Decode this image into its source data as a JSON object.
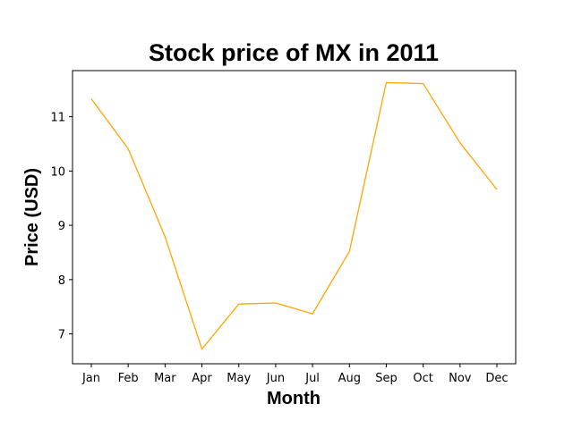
{
  "chart_data": {
    "type": "line",
    "title": "Stock price of MX in 2011",
    "xlabel": "Month",
    "ylabel": "Price (USD)",
    "categories": [
      "Jan",
      "Feb",
      "Mar",
      "Apr",
      "May",
      "Jun",
      "Jul",
      "Aug",
      "Sep",
      "Oct",
      "Nov",
      "Dec"
    ],
    "series": [
      {
        "values": [
          11.33,
          10.41,
          8.79,
          6.72,
          7.55,
          7.57,
          7.37,
          8.52,
          11.63,
          11.61,
          10.52,
          9.66
        ],
        "color": "#ffa500"
      }
    ],
    "ylim": [
      6.45,
      11.85
    ],
    "yticks": [
      7,
      8,
      9,
      10,
      11
    ],
    "grid": false,
    "legend": "none"
  }
}
